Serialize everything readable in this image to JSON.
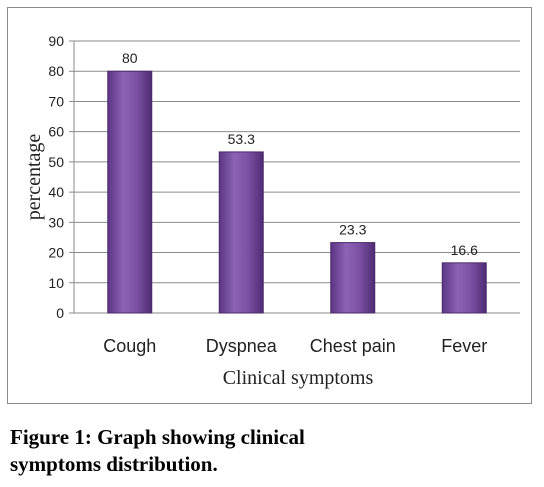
{
  "chart_data": {
    "type": "bar",
    "categories": [
      "Cough",
      "Dyspnea",
      "Chest pain",
      "Fever"
    ],
    "values": [
      80,
      53.3,
      23.3,
      16.6
    ],
    "data_labels": [
      "80",
      "53.3",
      "23.3",
      "16.6"
    ],
    "yticks": [
      0,
      10,
      20,
      30,
      40,
      50,
      60,
      70,
      80,
      90
    ],
    "ylim": [
      0,
      90
    ],
    "xlabel": "Clinical symptoms",
    "ylabel": "percentage",
    "grid": true,
    "legend": "none",
    "colors": {
      "bar": "#7a4fa0",
      "bar_edge": "#4b2a6b",
      "grid": "#8a8a8a",
      "text": "#222222"
    }
  },
  "caption": {
    "line1": "Figure 1: Graph showing clinical",
    "line2": "symptoms distribution."
  }
}
